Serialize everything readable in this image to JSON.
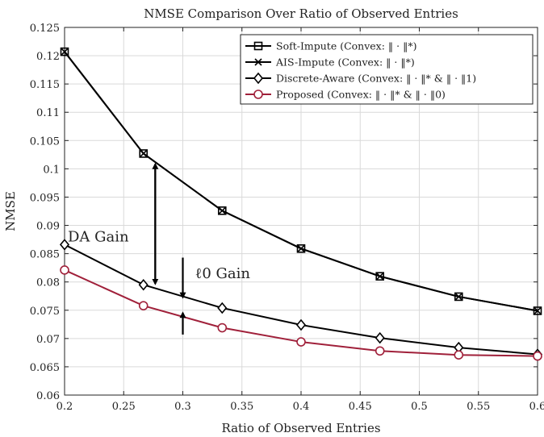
{
  "chart_data": {
    "type": "line",
    "title": "NMSE Comparison Over Ratio of Observed Entries",
    "xlabel": "Ratio of Observed Entries",
    "ylabel": "NMSE",
    "xlim": [
      0.2,
      0.6
    ],
    "ylim": [
      0.06,
      0.125
    ],
    "x_ticks": [
      "0.2",
      "0.25",
      "0.3",
      "0.35",
      "0.4",
      "0.45",
      "0.5",
      "0.55",
      "0.6"
    ],
    "y_ticks": [
      "0.06",
      "0.065",
      "0.07",
      "0.075",
      "0.08",
      "0.085",
      "0.09",
      "0.095",
      "0.1",
      "0.105",
      "0.11",
      "0.115",
      "0.12",
      "0.125"
    ],
    "x": [
      0.2,
      0.2667,
      0.3333,
      0.4,
      0.4667,
      0.5333,
      0.6
    ],
    "grid": true,
    "legend_position": "top-right",
    "series": [
      {
        "name": "Soft-Impute (Convex: ‖ · ‖*)",
        "marker": "square",
        "color": "#000000",
        "values": [
          0.1207,
          0.1027,
          0.0926,
          0.0859,
          0.081,
          0.0774,
          0.0749
        ]
      },
      {
        "name": "AIS-Impute (Convex: ‖ · ‖*)",
        "marker": "x",
        "color": "#000000",
        "values": [
          0.1207,
          0.1027,
          0.0926,
          0.0859,
          0.081,
          0.0774,
          0.0749
        ]
      },
      {
        "name": "Discrete-Aware (Convex: ‖ · ‖* & ‖ · ‖1)",
        "marker": "diamond",
        "color": "#000000",
        "values": [
          0.0866,
          0.0795,
          0.0754,
          0.0724,
          0.0701,
          0.0684,
          0.0672
        ]
      },
      {
        "name": "Proposed (Convex: ‖ · ‖* & ‖ · ‖0)",
        "marker": "circle",
        "color": "#a0203a",
        "values": [
          0.0821,
          0.0758,
          0.0719,
          0.0694,
          0.0678,
          0.0671,
          0.0669
        ]
      }
    ],
    "annotations": [
      {
        "text": "DA Gain",
        "x": 0.2,
        "y": 0.088,
        "arrow_x": 0.2767,
        "arrow_from": 0.1008,
        "arrow_to": 0.0797
      },
      {
        "text": "ℓ0 Gain",
        "x": 0.3063,
        "y": 0.0815,
        "arrow_x": 0.3,
        "arrow_from": 0.0843,
        "arrow_to": 0.0773,
        "arrow2_from": 0.0707,
        "arrow2_to": 0.0745
      }
    ]
  }
}
